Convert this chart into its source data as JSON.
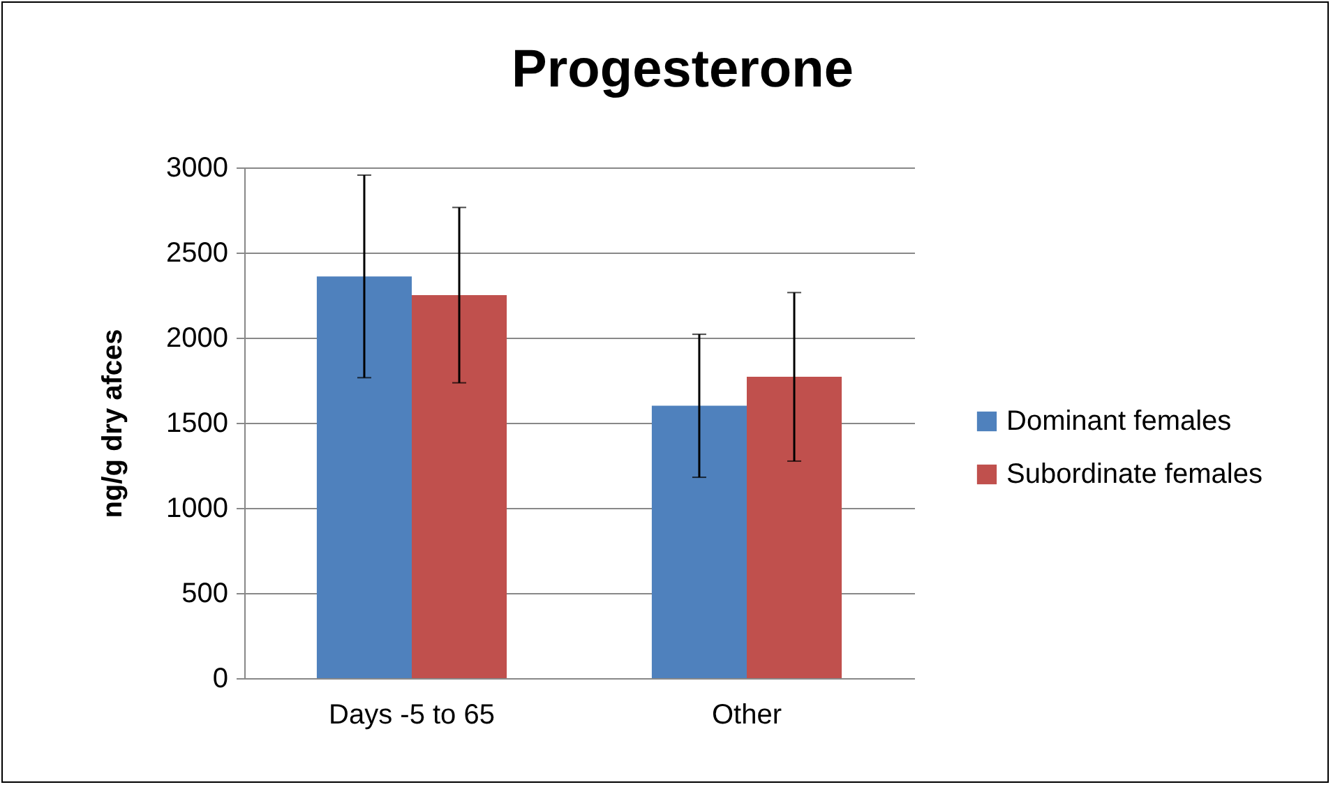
{
  "chart_data": {
    "type": "bar",
    "title": "Progesterone",
    "ylabel": "ng/g dry afces",
    "categories": [
      "Days -5 to 65",
      "Other"
    ],
    "series": [
      {
        "name": "Dominant females",
        "color": "#4f81bd",
        "values": [
          2360,
          1600
        ],
        "errors": [
          595,
          420
        ]
      },
      {
        "name": "Subordinate females",
        "color": "#c0504d",
        "values": [
          2250,
          1770
        ],
        "errors": [
          515,
          495
        ]
      }
    ],
    "ylim": [
      0,
      3000
    ],
    "yticks": [
      0,
      500,
      1000,
      1500,
      2000,
      2500,
      3000
    ],
    "grid": "y",
    "legend": "right"
  }
}
